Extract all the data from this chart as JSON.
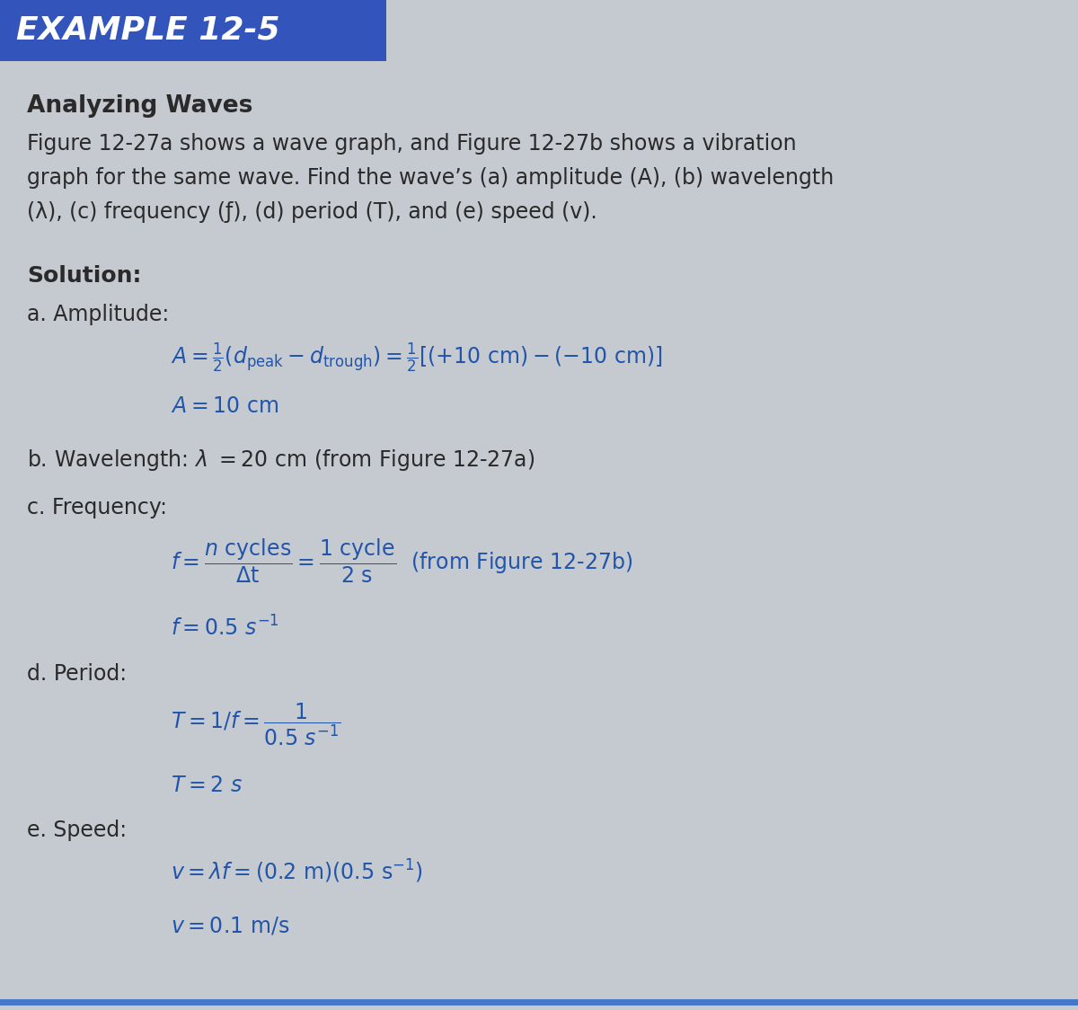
{
  "header_text": "EXAMPLE 12-5",
  "header_bg_color": "#3355bb",
  "header_text_color": "#ffffff",
  "body_bg_color": "#c5cad1",
  "border_color": "#4477cc",
  "title_bold": "Analyzing Waves",
  "solution_label": "Solution:",
  "text_color": "#2a2a2a",
  "blue_color": "#2255aa",
  "figsize": [
    12.0,
    11.24
  ],
  "dpi": 100
}
